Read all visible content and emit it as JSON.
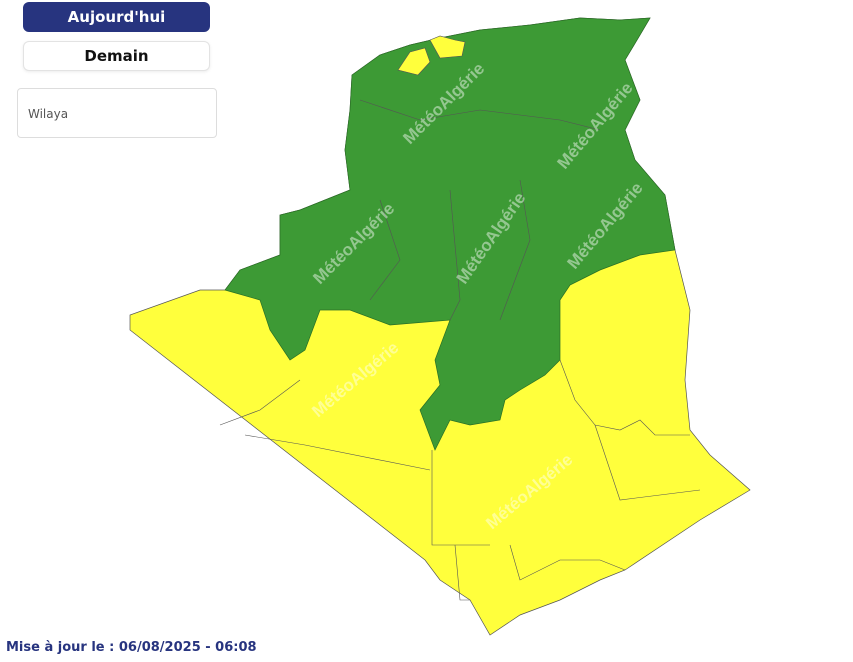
{
  "buttons": {
    "today": "Aujourd'hui",
    "tomorrow": "Demain"
  },
  "wilaya_select": {
    "placeholder": "Wilaya"
  },
  "updated": "Mise à jour le : 06/08/2025 - 06:08",
  "watermark": "MétéoAlgérie",
  "colors": {
    "green": "#3d9a35",
    "yellow": "#ffff3c",
    "accent": "#27347f"
  }
}
